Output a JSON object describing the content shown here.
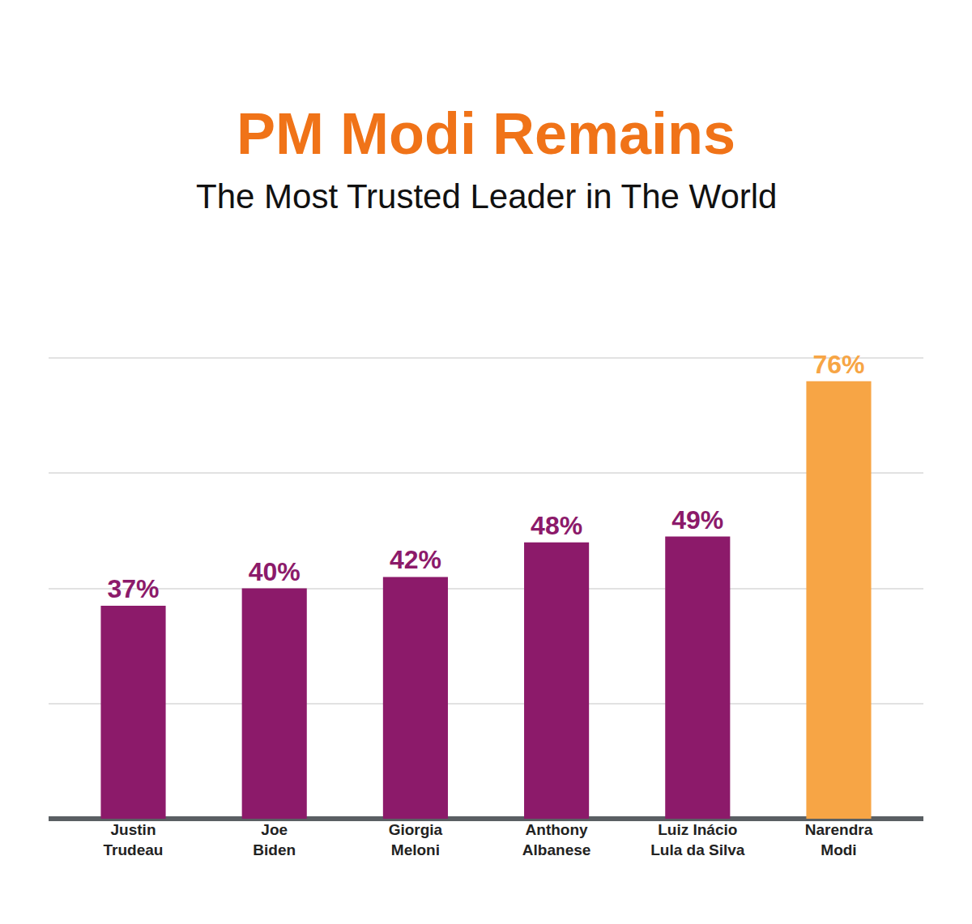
{
  "chart_data": {
    "type": "bar",
    "title": "PM Modi Remains",
    "subtitle": "The Most Trusted Leader in The World",
    "categories": [
      "Justin Trudeau",
      "Joe Biden",
      "Giorgia Meloni",
      "Anthony Albanese",
      "Luiz Inácio Lula da Silva",
      "Narendra Modi"
    ],
    "values": [
      37,
      40,
      42,
      48,
      49,
      76
    ],
    "value_labels": [
      "37%",
      "40%",
      "42%",
      "48%",
      "49%",
      "76%"
    ],
    "colors": [
      "#8c1a6a",
      "#8c1a6a",
      "#8c1a6a",
      "#8c1a6a",
      "#8c1a6a",
      "#f7a545"
    ],
    "data_labels": true,
    "ylim": [
      0,
      100
    ],
    "yticks": [
      0,
      20,
      40,
      60,
      80,
      100
    ],
    "grid": true,
    "tick_labels": "x"
  }
}
